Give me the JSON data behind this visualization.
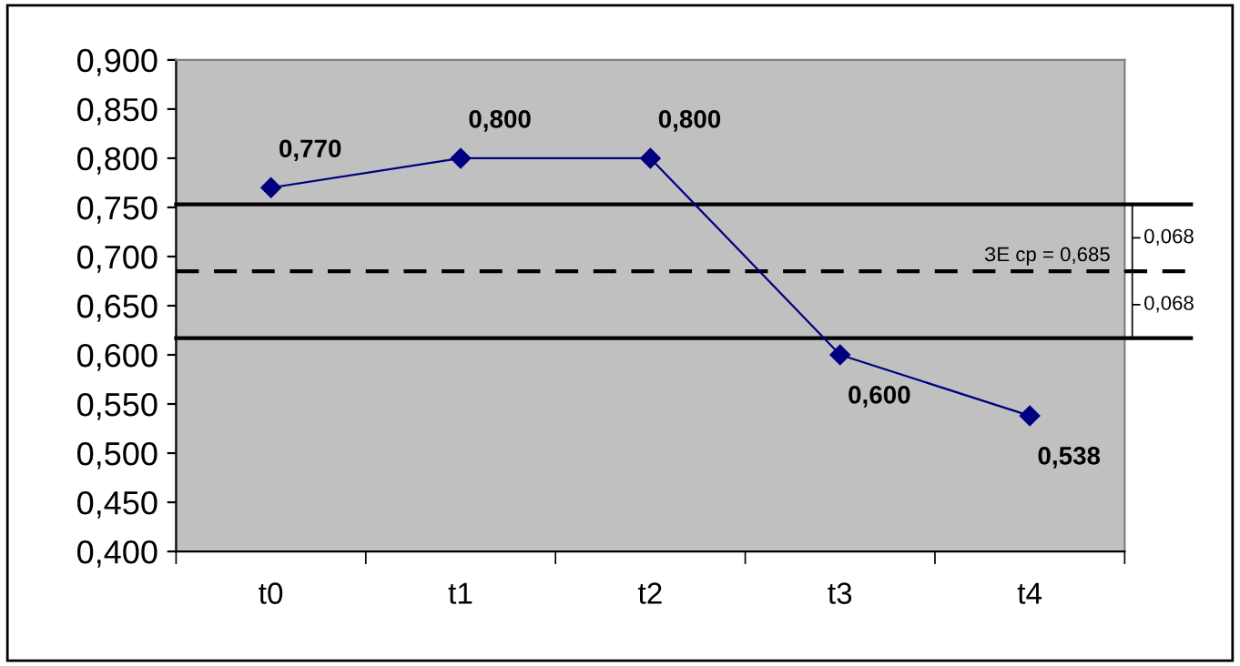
{
  "chart_data": {
    "type": "line",
    "categories": [
      "t0",
      "t1",
      "t2",
      "t3",
      "t4"
    ],
    "series": [
      {
        "color": "#000080",
        "values": [
          0.77,
          0.8,
          0.8,
          0.6,
          0.538
        ],
        "value_labels": [
          "0,770",
          "0,800",
          "0,800",
          "0,600",
          "0,538"
        ]
      }
    ],
    "marker": "diamond",
    "line_style": "solid",
    "grid": false,
    "legend": false,
    "ylim": [
      0.4,
      0.9
    ],
    "yticks": [
      {
        "value": 0.4,
        "label": "0,400"
      },
      {
        "value": 0.45,
        "label": "0,450"
      },
      {
        "value": 0.5,
        "label": "0,500"
      },
      {
        "value": 0.55,
        "label": "0,550"
      },
      {
        "value": 0.6,
        "label": "0,600"
      },
      {
        "value": 0.65,
        "label": "0,650"
      },
      {
        "value": 0.7,
        "label": "0,700"
      },
      {
        "value": 0.75,
        "label": "0,750"
      },
      {
        "value": 0.8,
        "label": "0,800"
      },
      {
        "value": 0.85,
        "label": "0,850"
      },
      {
        "value": 0.9,
        "label": "0,900"
      }
    ],
    "ref_lines": [
      {
        "axis": "y",
        "value": 0.753,
        "color": "#000000",
        "line_style": "solid"
      },
      {
        "axis": "y",
        "value": 0.685,
        "color": "#000000",
        "line_style": "dashed",
        "label": "ЗЕ ср = 0,685"
      },
      {
        "axis": "y",
        "value": 0.617,
        "color": "#000000",
        "line_style": "solid"
      }
    ],
    "annotations": [
      "0,068",
      "0,068"
    ]
  }
}
